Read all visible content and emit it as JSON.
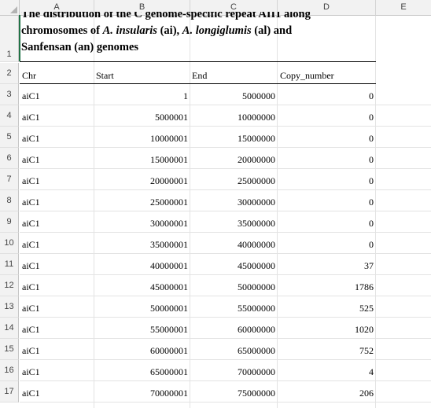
{
  "columns": [
    "A",
    "B",
    "C",
    "D",
    "E"
  ],
  "title": {
    "line1": "The distribution of the C genome-specific repeat AII1 along",
    "line2_a": "chromosomes of ",
    "line2_b": "A. insularis",
    "line2_c": " (ai), ",
    "line2_d": "A. longiglumis",
    "line2_e": " (al) and",
    "line3": "Sanfensan (an) genomes"
  },
  "headers": [
    "Chr",
    "Start",
    "End",
    "Copy_number"
  ],
  "row_numbers": [
    "1",
    "2",
    "3",
    "4",
    "5",
    "6",
    "7",
    "8",
    "9",
    "10",
    "11",
    "12",
    "13",
    "14",
    "15",
    "16",
    "17"
  ],
  "rows": [
    [
      "aiC1",
      "1",
      "5000000",
      "0"
    ],
    [
      "aiC1",
      "5000001",
      "10000000",
      "0"
    ],
    [
      "aiC1",
      "10000001",
      "15000000",
      "0"
    ],
    [
      "aiC1",
      "15000001",
      "20000000",
      "0"
    ],
    [
      "aiC1",
      "20000001",
      "25000000",
      "0"
    ],
    [
      "aiC1",
      "25000001",
      "30000000",
      "0"
    ],
    [
      "aiC1",
      "30000001",
      "35000000",
      "0"
    ],
    [
      "aiC1",
      "35000001",
      "40000000",
      "0"
    ],
    [
      "aiC1",
      "40000001",
      "45000000",
      "37"
    ],
    [
      "aiC1",
      "45000001",
      "50000000",
      "1786"
    ],
    [
      "aiC1",
      "50000001",
      "55000000",
      "525"
    ],
    [
      "aiC1",
      "55000001",
      "60000000",
      "1020"
    ],
    [
      "aiC1",
      "60000001",
      "65000000",
      "752"
    ],
    [
      "aiC1",
      "65000001",
      "70000000",
      "4"
    ],
    [
      "aiC1",
      "70000001",
      "75000000",
      "206"
    ]
  ]
}
